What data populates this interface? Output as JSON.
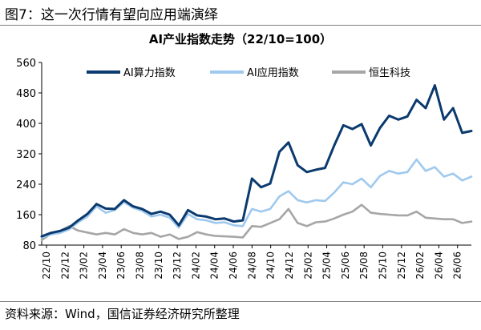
{
  "figure": {
    "label": "图7：这一次行情有望向应用端演绎",
    "source": "资料来源：Wind，国信证券经济研究所整理"
  },
  "chart_data": {
    "type": "line",
    "title": "AI产业指数走势（22/10=100）",
    "xlabel": "",
    "ylabel": "",
    "ylim": [
      80,
      560
    ],
    "yticks": [
      80,
      160,
      240,
      320,
      400,
      480,
      560
    ],
    "xticks": [
      "22/10",
      "22/12",
      "23/02",
      "23/04",
      "23/06",
      "23/08",
      "23/10",
      "23/12",
      "24/02",
      "24/04",
      "24/06",
      "24/08",
      "24/10",
      "24/12",
      "25/02",
      "25/04",
      "25/06",
      "25/08",
      "25/10",
      "25/12",
      "26/02",
      "26/04",
      "26/06"
    ],
    "legend_position": "top",
    "grid": false,
    "series": [
      {
        "name": "AI算力指数",
        "color": "#0b3a6e",
        "values": [
          [
            0,
            103
          ],
          [
            1,
            112
          ],
          [
            2,
            117
          ],
          [
            3,
            126
          ],
          [
            4,
            145
          ],
          [
            5,
            162
          ],
          [
            6,
            188
          ],
          [
            7,
            176
          ],
          [
            8,
            175
          ],
          [
            9,
            198
          ],
          [
            10,
            182
          ],
          [
            11,
            175
          ],
          [
            12,
            162
          ],
          [
            13,
            168
          ],
          [
            14,
            160
          ],
          [
            15,
            132
          ],
          [
            16,
            172
          ],
          [
            17,
            158
          ],
          [
            18,
            155
          ],
          [
            19,
            148
          ],
          [
            20,
            150
          ],
          [
            21,
            142
          ],
          [
            22,
            145
          ],
          [
            23,
            255
          ],
          [
            24,
            232
          ],
          [
            25,
            242
          ],
          [
            26,
            325
          ],
          [
            27,
            350
          ],
          [
            28,
            290
          ],
          [
            29,
            272
          ],
          [
            30,
            278
          ],
          [
            31,
            283
          ],
          [
            32,
            342
          ],
          [
            33,
            395
          ],
          [
            34,
            385
          ],
          [
            35,
            398
          ],
          [
            36,
            342
          ],
          [
            37,
            388
          ],
          [
            38,
            420
          ],
          [
            39,
            410
          ],
          [
            40,
            418
          ],
          [
            41,
            462
          ],
          [
            42,
            440
          ],
          [
            43,
            500
          ],
          [
            44,
            410
          ],
          [
            45,
            440
          ],
          [
            46,
            375
          ],
          [
            47,
            380
          ]
        ]
      },
      {
        "name": "AI应用指数",
        "color": "#9fc9ee",
        "values": [
          [
            0,
            100
          ],
          [
            1,
            108
          ],
          [
            2,
            112
          ],
          [
            3,
            121
          ],
          [
            4,
            140
          ],
          [
            5,
            155
          ],
          [
            6,
            182
          ],
          [
            7,
            165
          ],
          [
            8,
            172
          ],
          [
            9,
            193
          ],
          [
            10,
            178
          ],
          [
            11,
            170
          ],
          [
            12,
            155
          ],
          [
            13,
            160
          ],
          [
            14,
            152
          ],
          [
            15,
            126
          ],
          [
            16,
            162
          ],
          [
            17,
            148
          ],
          [
            18,
            145
          ],
          [
            19,
            138
          ],
          [
            20,
            140
          ],
          [
            21,
            132
          ],
          [
            22,
            130
          ],
          [
            23,
            175
          ],
          [
            24,
            168
          ],
          [
            25,
            175
          ],
          [
            26,
            208
          ],
          [
            27,
            222
          ],
          [
            28,
            198
          ],
          [
            29,
            192
          ],
          [
            30,
            198
          ],
          [
            31,
            196
          ],
          [
            32,
            218
          ],
          [
            33,
            245
          ],
          [
            34,
            240
          ],
          [
            35,
            255
          ],
          [
            36,
            232
          ],
          [
            37,
            262
          ],
          [
            38,
            275
          ],
          [
            39,
            268
          ],
          [
            40,
            272
          ],
          [
            41,
            305
          ],
          [
            42,
            275
          ],
          [
            43,
            285
          ],
          [
            44,
            260
          ],
          [
            45,
            268
          ],
          [
            46,
            250
          ],
          [
            47,
            260
          ]
        ]
      },
      {
        "name": "恒生科技",
        "color": "#a6a6a6",
        "values": [
          [
            0,
            93
          ],
          [
            1,
            110
          ],
          [
            2,
            117
          ],
          [
            3,
            130
          ],
          [
            4,
            118
          ],
          [
            5,
            113
          ],
          [
            6,
            108
          ],
          [
            7,
            112
          ],
          [
            8,
            108
          ],
          [
            9,
            122
          ],
          [
            10,
            112
          ],
          [
            11,
            108
          ],
          [
            12,
            112
          ],
          [
            13,
            102
          ],
          [
            14,
            108
          ],
          [
            15,
            96
          ],
          [
            16,
            102
          ],
          [
            17,
            114
          ],
          [
            18,
            108
          ],
          [
            19,
            104
          ],
          [
            20,
            103
          ],
          [
            21,
            102
          ],
          [
            22,
            100
          ],
          [
            23,
            130
          ],
          [
            24,
            128
          ],
          [
            25,
            138
          ],
          [
            26,
            148
          ],
          [
            27,
            175
          ],
          [
            28,
            138
          ],
          [
            29,
            130
          ],
          [
            30,
            140
          ],
          [
            31,
            142
          ],
          [
            32,
            150
          ],
          [
            33,
            160
          ],
          [
            34,
            168
          ],
          [
            35,
            186
          ],
          [
            36,
            165
          ],
          [
            37,
            162
          ],
          [
            38,
            160
          ],
          [
            39,
            158
          ],
          [
            40,
            158
          ],
          [
            41,
            168
          ],
          [
            42,
            152
          ],
          [
            43,
            150
          ],
          [
            44,
            148
          ],
          [
            45,
            148
          ],
          [
            46,
            138
          ],
          [
            47,
            142
          ]
        ]
      }
    ]
  }
}
